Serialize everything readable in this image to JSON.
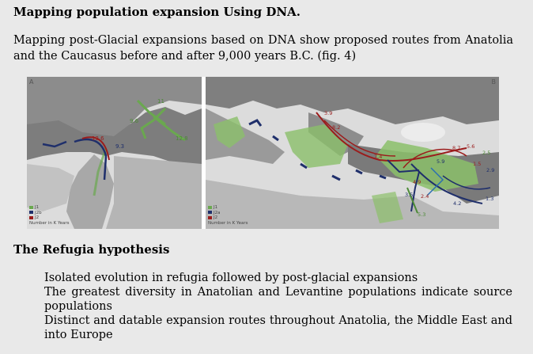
{
  "title": "Mapping population expansion Using DNA.",
  "intro": "Mapping post-Glacial expansions based on DNA show proposed routes from Anatolia and the Caucasus before and after 9,000  years B.C. (fig. 4)",
  "figure": {
    "panel_a": {
      "letter": "A",
      "route_labels": [
        "11",
        "9.6",
        "13.6",
        "9.3",
        "12.8"
      ],
      "legend": [
        "J1",
        "J2b",
        "J2",
        "Number in K Years"
      ]
    },
    "panel_b": {
      "letter": "B",
      "route_labels": [
        "3.9",
        "8.2",
        "7.4",
        "8.7",
        "5.6",
        "2.5",
        "1.5",
        "2.9",
        "5.9",
        "4.9",
        "3.5",
        "2.4",
        "4.2",
        "1.3",
        "5.3"
      ],
      "legend": [
        "J1",
        "J2a",
        "J2",
        "Number in K Years"
      ]
    },
    "colors": {
      "green": "#6aa84f",
      "navy": "#1f2f6b",
      "red": "#9b1c1c",
      "land": "#8a8a8a",
      "sea": "#d8d8d8"
    }
  },
  "section_heading": "The Refugia hypothesis",
  "bullets": [
    "Isolated evolution in refugia  followed by post-glacial expansions",
    "The greatest diversity in Anatolian and Levantine populations indicate source populations",
    "Distinct and datable expansion routes throughout Anatolia, the Middle East and into Europe"
  ]
}
